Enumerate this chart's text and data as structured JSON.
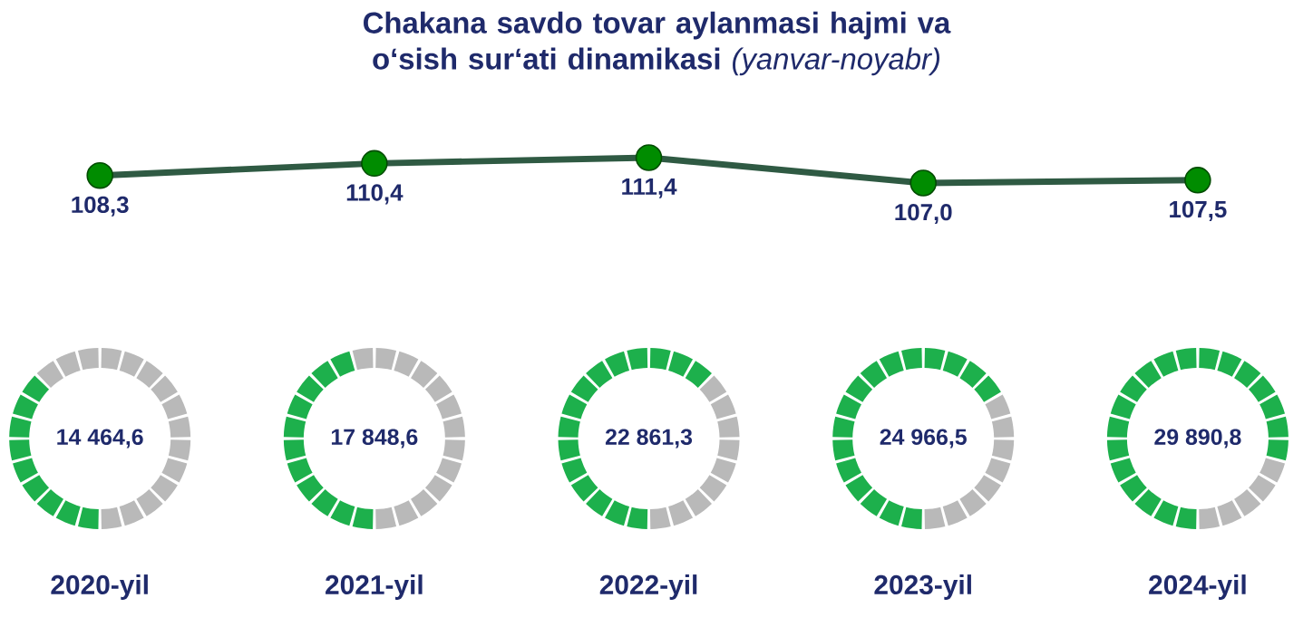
{
  "chart_data": [
    {
      "type": "line",
      "title": "**Chakana savdo tovar aylanmasi hajmi va o‘sish sur‘ati dinamikasi** *(yanvar-noyabr)*",
      "categories": [
        "2020-yil",
        "2021-yil",
        "2022-yil",
        "2023-yil",
        "2024-yil"
      ],
      "values": [
        108.3,
        110.4,
        111.4,
        107.0,
        107.5
      ],
      "value_labels": [
        "108,3",
        "110,4",
        "111,4",
        "107,0",
        "107,5"
      ],
      "color": "#2f5a43",
      "marker": "circle"
    },
    {
      "type": "other",
      "values": [
        14464.6,
        17848.6,
        22861.3,
        24966.5,
        29890.8
      ],
      "value_labels": [
        "14 464,6",
        "17 848,6",
        "22 861,3",
        "24 966,5",
        "29 890,8"
      ],
      "color": "#1db04c"
    }
  ]
}
